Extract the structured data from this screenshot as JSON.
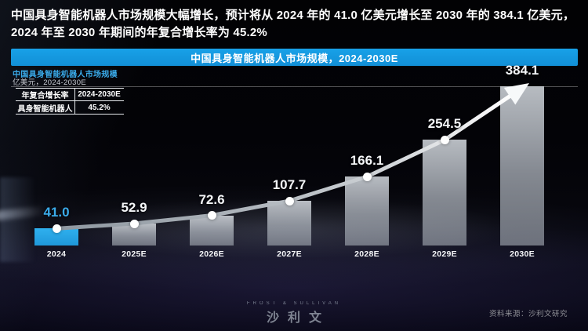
{
  "page": {
    "title": "中国具身智能机器人市场规模大幅增长，预计将从 2024 年的 41.0 亿美元增长至 2030 年的 384.1 亿美元，2024 年至 2030 年期间的年复合增长率为 45.2%",
    "banner": "中国具身智能机器人市场规模，2024-2030E"
  },
  "chart_header": {
    "title": "中国具身智能机器人市场规模",
    "subtitle": "亿美元，2024-2030E"
  },
  "legend_table": {
    "header": [
      "年复合增长率",
      "2024-2030E"
    ],
    "rows": [
      [
        "具身智能机器人",
        "45.2%"
      ]
    ]
  },
  "chart_data": {
    "type": "bar",
    "title": "中国具身智能机器人市场规模，2024-2030E",
    "unit": "亿美元",
    "categories": [
      "2024",
      "2025E",
      "2026E",
      "2027E",
      "2028E",
      "2029E",
      "2030E"
    ],
    "values": [
      41.0,
      52.9,
      72.6,
      107.7,
      166.1,
      254.5,
      384.1
    ],
    "cagr_label": "年复合增长率",
    "cagr_series": "具身智能机器人",
    "cagr_value": "45.2%",
    "ylim": [
      0,
      384.1
    ],
    "highlight_index": 0,
    "trend_line": true,
    "value_labels": true,
    "legend_position": "top-left",
    "grid": false
  },
  "footer": {
    "logo_top": "FROST & SULLIVAN",
    "logo_main": "沙利文",
    "source": "资料来源：沙利文研究"
  },
  "colors": {
    "banner_bg": "#18a1e8",
    "highlight_bar": "#2aabe8",
    "accent_blue": "#3aabea",
    "bar_gray": "#b9bfc7",
    "trend_start": "#8f98a1",
    "trend_end": "#ffffff"
  }
}
